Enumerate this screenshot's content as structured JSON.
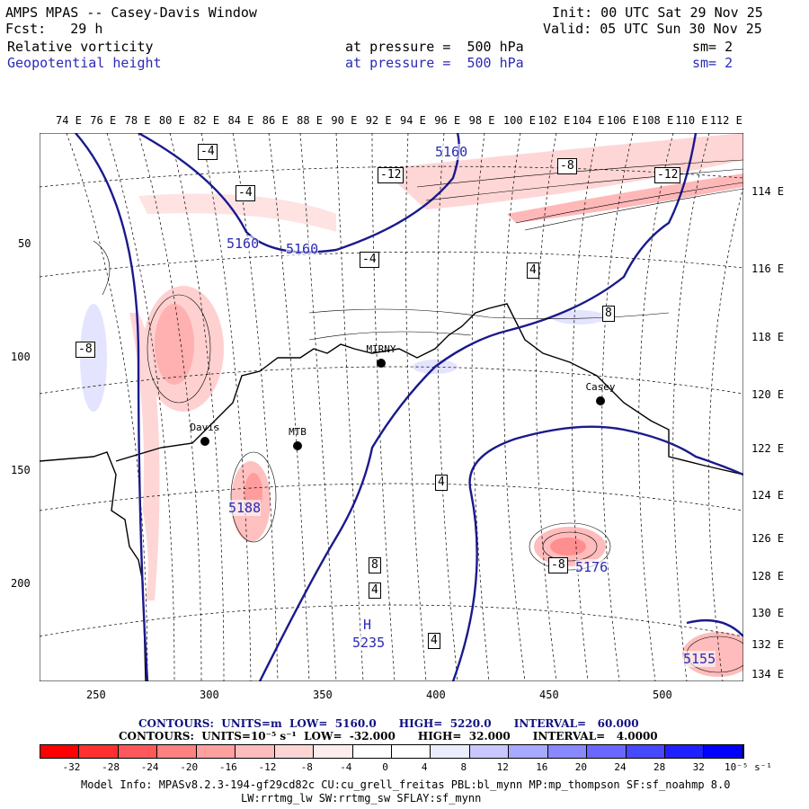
{
  "header": {
    "title": "AMPS MPAS -- Casey-Davis Window",
    "fcst": "Fcst:   29 h",
    "init": "Init: 00 UTC Sat 29 Nov 25",
    "valid": "Valid: 05 UTC Sun 30 Nov 25",
    "field1": "Relative vorticity",
    "field1_pressure": "at pressure =  500 hPa",
    "field1_sm": "sm= 2",
    "field2": "Geopotential height",
    "field2_pressure": "at pressure =  500 hPa",
    "field2_sm": "sm= 2"
  },
  "top_longitudes": [
    "74 E",
    "76 E",
    "78 E",
    "80 E",
    "82 E",
    "84 E",
    "86 E",
    "88 E",
    "90 E",
    "92 E",
    "94 E",
    "96 E",
    "98 E",
    "100 E",
    "102 E",
    "104 E",
    "106 E",
    "108 E",
    "110 E",
    "112 E"
  ],
  "right_longitudes": [
    "114 E",
    "116 E",
    "118 E",
    "120 E",
    "122 E",
    "124 E",
    "126 E",
    "128 E",
    "130 E",
    "132 E",
    "134 E"
  ],
  "y_ticks": [
    "50",
    "100",
    "150",
    "200"
  ],
  "x_ticks": [
    "250",
    "300",
    "350",
    "400",
    "450",
    "500"
  ],
  "stations": [
    {
      "name": "Davis"
    },
    {
      "name": "MTB"
    },
    {
      "name": "MIRNY"
    },
    {
      "name": "Casey"
    }
  ],
  "height_labels": [
    "5160",
    "5160",
    "5160",
    "5188",
    "5176",
    "5235",
    "5155",
    "H"
  ],
  "vort_labels": [
    "-4",
    "-4",
    "-4",
    "-12",
    "-12",
    "-8",
    "-8",
    "-8",
    "8",
    "8",
    "4",
    "4",
    "4",
    "4"
  ],
  "legend": {
    "contours1": "CONTOURS:  UNITS=m  LOW=  5160.0      HIGH=  5220.0      INTERVAL=   60.000",
    "contours2": "CONTOURS:  UNITS=10⁻⁵ s⁻¹  LOW=  -32.000      HIGH=  32.000      INTERVAL=   4.0000",
    "colorbar_labels": [
      "-32",
      "-28",
      "-24",
      "-20",
      "-16",
      "-12",
      "-8",
      "-4",
      "0",
      "4",
      "8",
      "12",
      "16",
      "20",
      "24",
      "28",
      "32"
    ],
    "colorbar_units": "10⁻⁵ s⁻¹",
    "colors": [
      "#ff0000",
      "#ff3030",
      "#ff5858",
      "#ff8080",
      "#ffa0a0",
      "#ffbcbc",
      "#ffd4d4",
      "#ffecec",
      "#ffffff",
      "#ffffff",
      "#ececff",
      "#c8c8ff",
      "#a8a8ff",
      "#8888ff",
      "#6868ff",
      "#4848ff",
      "#2020ff",
      "#0000ff"
    ]
  },
  "model_info": "Model Info: MPASv8.2.3-194-gf29cd82c CU:cu_grell_freitas PBL:bl_mynn MP:mp_thompson SF:sf_noahmp 8.0",
  "model_info2": "LW:rrtmg_lw SW:rrtmg_sw SFLAY:sf_mynn"
}
